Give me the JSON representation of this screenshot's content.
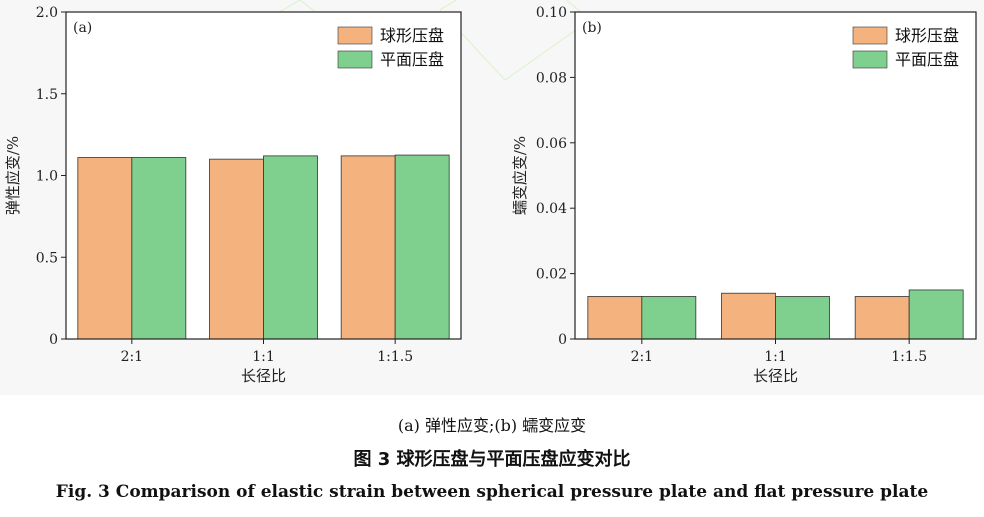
{
  "chart_data": [
    {
      "type": "bar",
      "panel_label": "(a)",
      "categories": [
        "2:1",
        "1:1",
        "1:1.5"
      ],
      "series": [
        {
          "name": "球形压盘",
          "values": [
            1.11,
            1.1,
            1.12
          ],
          "color": "#f4b27f"
        },
        {
          "name": "平面压盘",
          "values": [
            1.11,
            1.12,
            1.125
          ],
          "color": "#7fcf8e"
        }
      ],
      "ylim": [
        0,
        2.0
      ],
      "yticks": [
        "0",
        "0.5",
        "1.0",
        "1.5",
        "2.0"
      ],
      "xlabel": "长径比",
      "ylabel": "弹性应变/%",
      "legend_position": "top-right"
    },
    {
      "type": "bar",
      "panel_label": "(b)",
      "categories": [
        "2:1",
        "1:1",
        "1:1.5"
      ],
      "series": [
        {
          "name": "球形压盘",
          "values": [
            0.013,
            0.014,
            0.013
          ],
          "color": "#f4b27f"
        },
        {
          "name": "平面压盘",
          "values": [
            0.013,
            0.013,
            0.015
          ],
          "color": "#7fcf8e"
        }
      ],
      "ylim": [
        0,
        0.1
      ],
      "yticks": [
        "0",
        "0.02",
        "0.04",
        "0.06",
        "0.08",
        "0.10"
      ],
      "xlabel": "长径比",
      "ylabel": "蠕变应变/%",
      "legend_position": "top-right"
    }
  ],
  "caption": {
    "sub": "(a) 弹性应变;(b) 蠕变应变",
    "cn": "图 3    球形压盘与平面压盘应变对比",
    "en": "Fig. 3    Comparison of elastic strain between spherical pressure plate and flat pressure plate"
  }
}
